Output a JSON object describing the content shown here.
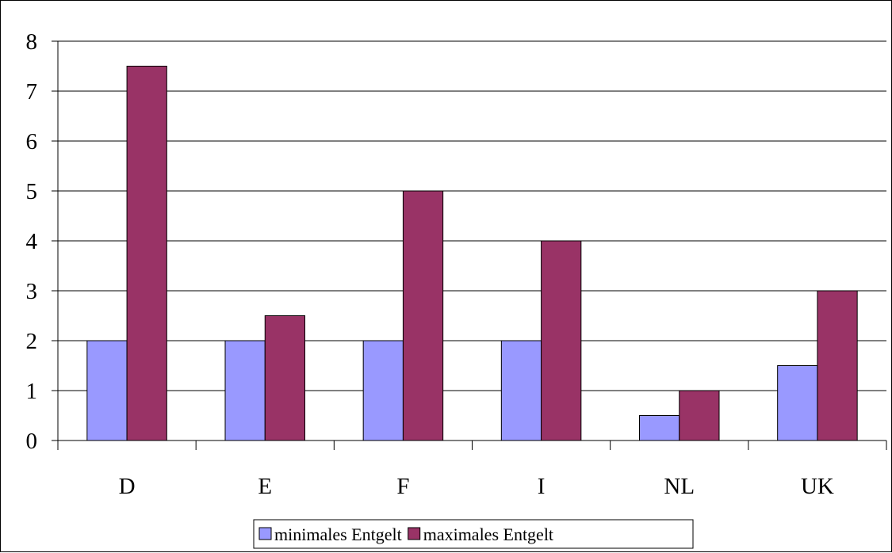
{
  "chart_data": {
    "type": "bar",
    "categories": [
      "D",
      "E",
      "F",
      "I",
      "NL",
      "UK"
    ],
    "series": [
      {
        "name": "minimales Entgelt",
        "values": [
          2,
          2,
          2,
          2,
          0.5,
          1.5
        ],
        "color": "#9999FF"
      },
      {
        "name": "maximales Entgelt",
        "values": [
          7.5,
          2.5,
          5,
          4,
          1,
          3
        ],
        "color": "#993366"
      }
    ],
    "ylim": [
      0,
      8
    ],
    "yticks": [
      0,
      1,
      2,
      3,
      4,
      5,
      6,
      7,
      8
    ],
    "grid": true,
    "legend": "bottom",
    "title": "",
    "xlabel": "",
    "ylabel": ""
  }
}
